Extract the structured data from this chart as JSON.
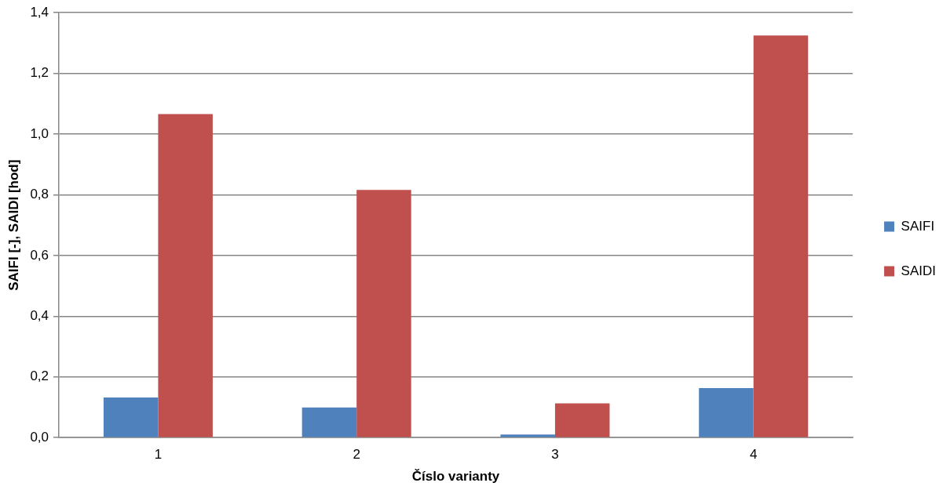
{
  "chart_data": {
    "type": "bar",
    "xlabel": "Číslo varianty",
    "ylabel": "SAIFI [-], SAIDI [hod]",
    "categories": [
      "1",
      "2",
      "3",
      "4"
    ],
    "series": [
      {
        "name": "SAIFI",
        "color": "#4f81bd",
        "values": [
          0.132,
          0.099,
          0.01,
          0.163
        ]
      },
      {
        "name": "SAIDI",
        "color": "#c0504d",
        "values": [
          1.066,
          0.816,
          0.113,
          1.325
        ]
      }
    ],
    "ylim": [
      0,
      1.4
    ],
    "yticks": [
      {
        "value": 0,
        "label": "0,0"
      },
      {
        "value": 0.2,
        "label": "0,2"
      },
      {
        "value": 0.4,
        "label": "0,4"
      },
      {
        "value": 0.6,
        "label": "0,6"
      },
      {
        "value": 0.8,
        "label": "0,8"
      },
      {
        "value": 1,
        "label": "1,0"
      },
      {
        "value": 1.2,
        "label": "1,2"
      },
      {
        "value": 1.4,
        "label": "1,4"
      }
    ],
    "grid": "y",
    "legend": "right"
  }
}
